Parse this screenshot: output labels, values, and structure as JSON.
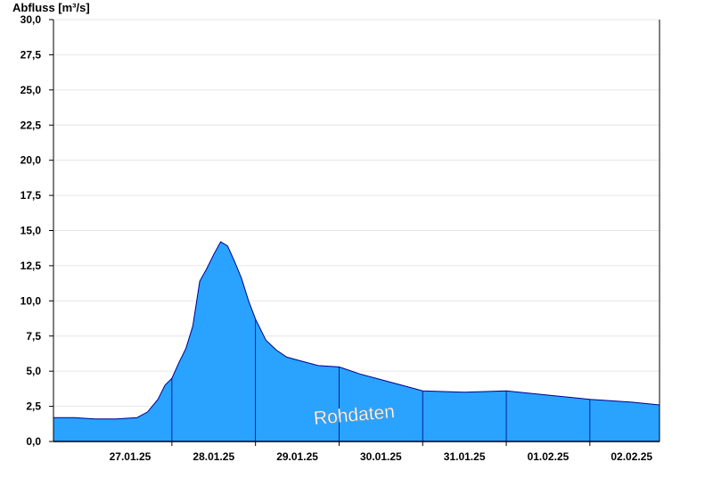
{
  "chart_data": {
    "type": "area",
    "title": "",
    "ylabel": "Abfluss [m³/s]",
    "xlabel": "",
    "ylim": [
      0,
      30
    ],
    "y_ticks": [
      "0,0",
      "2,5",
      "5,0",
      "7,5",
      "10,0",
      "12,5",
      "15,0",
      "17,5",
      "20,0",
      "22,5",
      "25,0",
      "27,5",
      "30,0"
    ],
    "x_range": [
      "2025-01-26T14:00",
      "2025-02-02T20:00"
    ],
    "x_ticks": [
      {
        "date": "2025-01-27",
        "label": "27.01.25"
      },
      {
        "date": "2025-01-28",
        "label": "28.01.25"
      },
      {
        "date": "2025-01-29",
        "label": "29.01.25"
      },
      {
        "date": "2025-01-30",
        "label": "30.01.25"
      },
      {
        "date": "2025-01-31",
        "label": "31.01.25"
      },
      {
        "date": "2025-02-01",
        "label": "01.02.25"
      },
      {
        "date": "2025-02-02",
        "label": "02.02.25"
      }
    ],
    "grid": true,
    "annotation": "Rohdaten",
    "colors": {
      "fill": "#29a3ff",
      "line": "#00008b",
      "grid": "#e6e6e6",
      "axis": "#000000"
    },
    "series": [
      {
        "x": [
          "2025-01-26T14:00",
          "2025-01-26T20:00",
          "2025-01-27T02:00",
          "2025-01-27T08:00",
          "2025-01-27T14:00",
          "2025-01-27T17:00",
          "2025-01-27T20:00",
          "2025-01-27T22:00",
          "2025-01-28T00:00",
          "2025-01-28T02:00",
          "2025-01-28T04:00",
          "2025-01-28T06:00",
          "2025-01-28T08:00",
          "2025-01-28T10:00",
          "2025-01-28T12:00",
          "2025-01-28T14:00",
          "2025-01-28T16:00",
          "2025-01-28T18:00",
          "2025-01-28T20:00",
          "2025-01-28T22:00",
          "2025-01-29T00:00",
          "2025-01-29T03:00",
          "2025-01-29T06:00",
          "2025-01-29T09:00",
          "2025-01-29T12:00",
          "2025-01-29T18:00",
          "2025-01-30T00:00",
          "2025-01-30T06:00",
          "2025-01-30T12:00",
          "2025-01-30T18:00",
          "2025-01-31T00:00",
          "2025-01-31T12:00",
          "2025-02-01T00:00",
          "2025-02-01T12:00",
          "2025-02-02T00:00",
          "2025-02-02T12:00",
          "2025-02-02T20:00"
        ],
        "values": [
          1.7,
          1.7,
          1.6,
          1.6,
          1.7,
          2.1,
          3.0,
          4.0,
          4.5,
          5.6,
          6.6,
          8.2,
          11.4,
          12.3,
          13.3,
          14.2,
          13.9,
          12.8,
          11.6,
          10.0,
          8.7,
          7.2,
          6.5,
          6.0,
          5.8,
          5.4,
          5.3,
          4.8,
          4.4,
          4.0,
          3.6,
          3.5,
          3.6,
          3.3,
          3.0,
          2.8,
          2.6
        ]
      }
    ]
  }
}
